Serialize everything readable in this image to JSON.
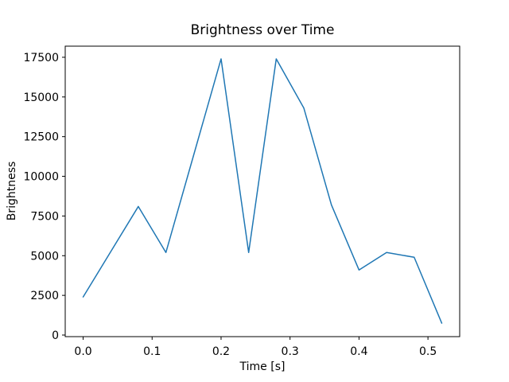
{
  "chart_data": {
    "type": "line",
    "title": "Brightness over Time",
    "xlabel": "Time [s]",
    "ylabel": "Brightness",
    "x": [
      0.0,
      0.04,
      0.08,
      0.12,
      0.16,
      0.2,
      0.24,
      0.28,
      0.32,
      0.36,
      0.4,
      0.44,
      0.48,
      0.52
    ],
    "y": [
      2400,
      5250,
      8100,
      5200,
      11300,
      17400,
      5200,
      17400,
      14300,
      8200,
      4100,
      5200,
      4900,
      750
    ],
    "xlim": [
      -0.026,
      0.546
    ],
    "ylim": [
      -100,
      18200
    ],
    "xticks": [
      0.0,
      0.1,
      0.2,
      0.3,
      0.4,
      0.5
    ],
    "xtick_labels": [
      "0.0",
      "0.1",
      "0.2",
      "0.3",
      "0.4",
      "0.5"
    ],
    "yticks": [
      0,
      2500,
      5000,
      7500,
      10000,
      12500,
      15000,
      17500
    ],
    "ytick_labels": [
      "0",
      "2500",
      "5000",
      "7500",
      "10000",
      "12500",
      "15000",
      "17500"
    ],
    "grid": false,
    "legend_position": "none",
    "line_color": "#1f77b4",
    "line_width": 1.5,
    "axis_color": "#000000",
    "background_color": "#ffffff"
  }
}
